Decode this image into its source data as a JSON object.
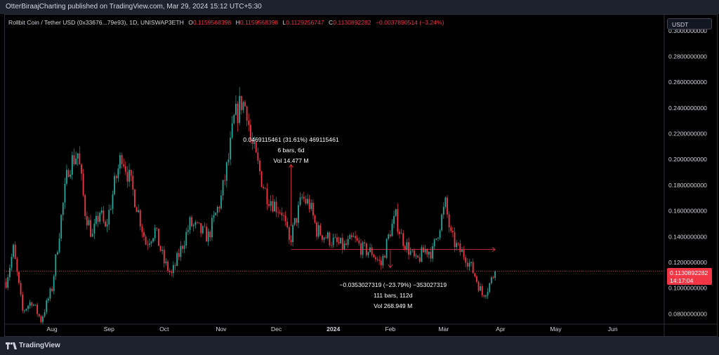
{
  "header": {
    "published": "OtterBiraajCharting published on TradingView.com, Mar 29, 2024 15:12 UTC+5:30"
  },
  "legend": {
    "symbol": "Rollbit Coin / Tether USD (0x33676...79e93), 1D, UNISWAP3ETH",
    "o_label": "O",
    "o": "0.1159568398",
    "h_label": "H",
    "h": "0.1159568398",
    "l_label": "L",
    "l": "0.1129256747",
    "c_label": "C",
    "c": "0.1130892282",
    "change": "−0.0037890514 (−3.24%)"
  },
  "unit_button": "USDT",
  "price_tag": {
    "price": "0.1130892282",
    "countdown": "14:17:04"
  },
  "footer": {
    "brand": "TradingView"
  },
  "colors": {
    "up": "#26a69a",
    "down": "#f23645",
    "background": "#000000",
    "panel": "#1e222d"
  },
  "chart_data": {
    "type": "candlestick",
    "y_axis": {
      "ticks": [
        "0.3000000000",
        "0.2800000000",
        "0.2600000000",
        "0.2400000000",
        "0.2200000000",
        "0.2000000000",
        "0.1800000000",
        "0.1600000000",
        "0.1400000000",
        "0.1200000000",
        "0.1000000000",
        "0.0800000000"
      ],
      "range": [
        0.072,
        0.313
      ]
    },
    "x_axis": {
      "ticks": [
        {
          "label": "Aug",
          "date": "2023-08-01"
        },
        {
          "label": "Sep",
          "date": "2023-09-01"
        },
        {
          "label": "Oct",
          "date": "2023-10-01"
        },
        {
          "label": "Nov",
          "date": "2023-11-01"
        },
        {
          "label": "Dec",
          "date": "2023-12-01"
        },
        {
          "label": "2024",
          "date": "2024-01-01"
        },
        {
          "label": "Feb",
          "date": "2024-02-01"
        },
        {
          "label": "Mar",
          "date": "2024-03-01"
        },
        {
          "label": "Apr",
          "date": "2024-04-01"
        },
        {
          "label": "May",
          "date": "2024-05-01"
        },
        {
          "label": "Jun",
          "date": "2024-06-01"
        }
      ]
    },
    "path": [
      [
        "2023-07-07",
        0.105
      ],
      [
        "2023-07-11",
        0.13
      ],
      [
        "2023-07-16",
        0.082
      ],
      [
        "2023-07-21",
        0.09
      ],
      [
        "2023-07-26",
        0.075
      ],
      [
        "2023-08-01",
        0.1
      ],
      [
        "2023-08-06",
        0.155
      ],
      [
        "2023-08-10",
        0.195
      ],
      [
        "2023-08-15",
        0.205
      ],
      [
        "2023-08-19",
        0.16
      ],
      [
        "2023-08-23",
        0.14
      ],
      [
        "2023-08-27",
        0.16
      ],
      [
        "2023-08-30",
        0.145
      ],
      [
        "2023-09-04",
        0.18
      ],
      [
        "2023-09-08",
        0.205
      ],
      [
        "2023-09-12",
        0.185
      ],
      [
        "2023-09-16",
        0.165
      ],
      [
        "2023-09-21",
        0.135
      ],
      [
        "2023-09-26",
        0.145
      ],
      [
        "2023-10-01",
        0.12
      ],
      [
        "2023-10-05",
        0.11
      ],
      [
        "2023-10-10",
        0.13
      ],
      [
        "2023-10-15",
        0.15
      ],
      [
        "2023-10-20",
        0.145
      ],
      [
        "2023-10-25",
        0.14
      ],
      [
        "2023-11-01",
        0.17
      ],
      [
        "2023-11-05",
        0.2
      ],
      [
        "2023-11-08",
        0.23
      ],
      [
        "2023-11-12",
        0.245
      ],
      [
        "2023-11-15",
        0.24
      ],
      [
        "2023-11-17",
        0.215
      ],
      [
        "2023-11-20",
        0.2
      ],
      [
        "2023-11-25",
        0.175
      ],
      [
        "2023-11-30",
        0.165
      ],
      [
        "2023-12-04",
        0.16
      ],
      [
        "2023-12-08",
        0.135
      ],
      [
        "2023-12-11",
        0.15
      ],
      [
        "2023-12-15",
        0.17
      ],
      [
        "2023-12-19",
        0.165
      ],
      [
        "2023-12-23",
        0.145
      ],
      [
        "2023-12-28",
        0.14
      ],
      [
        "2024-01-02",
        0.135
      ],
      [
        "2024-01-07",
        0.132
      ],
      [
        "2024-01-12",
        0.138
      ],
      [
        "2024-01-17",
        0.13
      ],
      [
        "2024-01-22",
        0.128
      ],
      [
        "2024-01-27",
        0.118
      ],
      [
        "2024-02-01",
        0.145
      ],
      [
        "2024-02-04",
        0.155
      ],
      [
        "2024-02-07",
        0.14
      ],
      [
        "2024-02-11",
        0.13
      ],
      [
        "2024-02-15",
        0.12
      ],
      [
        "2024-02-20",
        0.13
      ],
      [
        "2024-02-24",
        0.128
      ],
      [
        "2024-02-28",
        0.15
      ],
      [
        "2024-03-02",
        0.165
      ],
      [
        "2024-03-05",
        0.14
      ],
      [
        "2024-03-09",
        0.13
      ],
      [
        "2024-03-13",
        0.125
      ],
      [
        "2024-03-18",
        0.11
      ],
      [
        "2024-03-22",
        0.095
      ],
      [
        "2024-03-25",
        0.1
      ],
      [
        "2024-03-29",
        0.113
      ]
    ],
    "current_price": 0.1130892282,
    "measurements": [
      {
        "label_lines": [
          "0.0469115461 (31.61%) 469115461",
          "6 bars, 6d",
          "Vol 14.477 M"
        ],
        "from": [
          "2023-12-09",
          0.148
        ],
        "to": [
          "2023-12-09",
          0.196
        ]
      },
      {
        "label_lines": [
          "−0.0353027319 (−23.79%) −353027319",
          "111 bars, 112d",
          "Vol 268.949 M"
        ],
        "from": [
          "2023-12-09",
          0.13
        ],
        "to": [
          "2024-03-29",
          0.13
        ],
        "drop_date": "2024-02-01",
        "drop_to": 0.116
      }
    ]
  }
}
